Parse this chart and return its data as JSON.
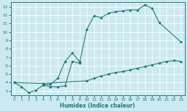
{
  "title": "",
  "xlabel": "Humidex (Indice chaleur)",
  "bg_color": "#cce9f0",
  "line_color": "#1a7a6e",
  "xlim": [
    -0.5,
    23.5
  ],
  "ylim": [
    2.5,
    13.5
  ],
  "xticks": [
    0,
    1,
    2,
    3,
    4,
    5,
    6,
    7,
    8,
    9,
    10,
    11,
    12,
    13,
    14,
    15,
    16,
    17,
    18,
    19,
    20,
    21,
    22,
    23
  ],
  "yticks": [
    3,
    4,
    5,
    6,
    7,
    8,
    9,
    10,
    11,
    12,
    13
  ],
  "line1_x": [
    0,
    1,
    2,
    3,
    4,
    5,
    6,
    7,
    8,
    9,
    10,
    11,
    12,
    13,
    14,
    15,
    16,
    17,
    18,
    19,
    20,
    23
  ],
  "line1_y": [
    4.0,
    3.5,
    2.8,
    3.1,
    3.7,
    3.5,
    3.5,
    3.6,
    6.5,
    6.3,
    10.3,
    11.9,
    11.7,
    12.2,
    12.4,
    12.5,
    12.6,
    12.6,
    13.2,
    12.8,
    11.1,
    8.8
  ],
  "line2_x": [
    4,
    5,
    6,
    7,
    8,
    9
  ],
  "line2_y": [
    3.7,
    3.8,
    4.5,
    6.5,
    7.5,
    6.5
  ],
  "line3_x": [
    0,
    4,
    10,
    11,
    12,
    13,
    14,
    15,
    16,
    17,
    18,
    19,
    20,
    21,
    22,
    23
  ],
  "line3_y": [
    4.0,
    3.9,
    4.2,
    4.5,
    4.8,
    5.0,
    5.2,
    5.3,
    5.5,
    5.7,
    5.9,
    6.1,
    6.3,
    6.5,
    6.6,
    6.5
  ]
}
